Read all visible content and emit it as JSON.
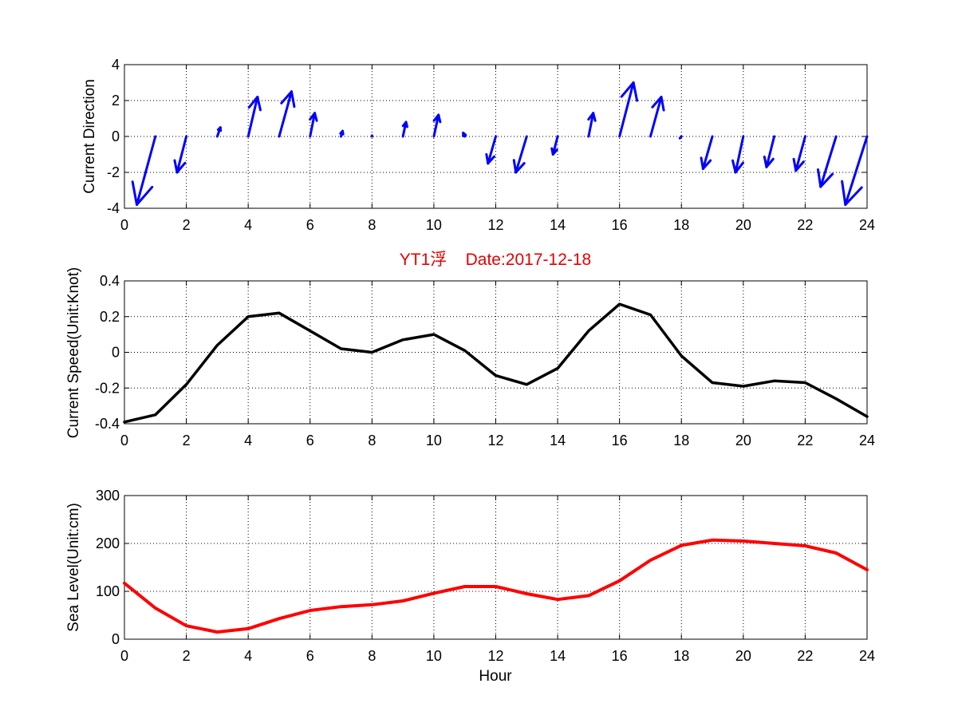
{
  "chart_data": [
    {
      "type": "quiver",
      "title": "",
      "xlabel": "",
      "ylabel": "Current Direction",
      "xlim": [
        0,
        24
      ],
      "ylim": [
        -4,
        4
      ],
      "xticks": [
        0,
        2,
        4,
        6,
        8,
        10,
        12,
        14,
        16,
        18,
        20,
        22,
        24
      ],
      "yticks": [
        -4,
        -2,
        0,
        2,
        4
      ],
      "grid": true,
      "color": "#0000ff",
      "x": [
        0,
        1,
        2,
        3,
        4,
        5,
        6,
        7,
        8,
        9,
        10,
        11,
        12,
        13,
        14,
        15,
        16,
        17,
        18,
        19,
        20,
        21,
        22,
        23,
        24
      ],
      "u": [
        0,
        -0.6,
        -0.3,
        0.1,
        0.3,
        0.4,
        0.15,
        0.05,
        0,
        0.1,
        0.15,
        -0.05,
        -0.25,
        -0.35,
        -0.15,
        0.15,
        0.45,
        0.35,
        -0.05,
        -0.3,
        -0.25,
        -0.25,
        -0.3,
        -0.5,
        -0.7
      ],
      "v": [
        0,
        -3.8,
        -2.0,
        0.5,
        2.2,
        2.5,
        1.3,
        0.3,
        0.05,
        0.8,
        1.2,
        0.2,
        -1.5,
        -2.0,
        -1.0,
        1.3,
        3.0,
        2.2,
        -0.1,
        -1.8,
        -2.0,
        -1.7,
        -1.9,
        -2.8,
        -3.8
      ]
    },
    {
      "type": "line",
      "title": "YT1浮    Date:2017-12-18",
      "xlabel": "",
      "ylabel": "Current Speed(Unit:Knot)",
      "xlim": [
        0,
        24
      ],
      "ylim": [
        -0.4,
        0.4
      ],
      "xticks": [
        0,
        2,
        4,
        6,
        8,
        10,
        12,
        14,
        16,
        18,
        20,
        22,
        24
      ],
      "yticks": [
        -0.4,
        -0.2,
        0,
        0.2,
        0.4
      ],
      "ytick_labels": [
        "-0.4",
        "-0.2",
        "0",
        "0.2",
        "0.4"
      ],
      "grid": true,
      "color": "#000000",
      "title_color": "#e60000",
      "x": [
        0,
        1,
        2,
        3,
        4,
        5,
        6,
        7,
        8,
        9,
        10,
        11,
        12,
        13,
        14,
        15,
        16,
        17,
        18,
        19,
        20,
        21,
        22,
        23,
        24
      ],
      "y": [
        -0.39,
        -0.35,
        -0.18,
        0.04,
        0.2,
        0.22,
        0.12,
        0.02,
        0.0,
        0.07,
        0.1,
        0.01,
        -0.13,
        -0.18,
        -0.09,
        0.12,
        0.27,
        0.21,
        -0.02,
        -0.17,
        -0.19,
        -0.16,
        -0.17,
        -0.26,
        -0.36
      ]
    },
    {
      "type": "line",
      "title": "",
      "xlabel": "Hour",
      "ylabel": "Sea Level(Unit:cm)",
      "xlim": [
        0,
        24
      ],
      "ylim": [
        0,
        300
      ],
      "xticks": [
        0,
        2,
        4,
        6,
        8,
        10,
        12,
        14,
        16,
        18,
        20,
        22,
        24
      ],
      "yticks": [
        0,
        100,
        200,
        300
      ],
      "ytick_labels": [
        "0",
        "100",
        "200",
        "300"
      ],
      "grid": true,
      "color": "#ff0000",
      "x": [
        0,
        1,
        2,
        3,
        4,
        5,
        6,
        7,
        8,
        9,
        10,
        11,
        12,
        13,
        14,
        15,
        16,
        17,
        18,
        19,
        20,
        21,
        22,
        23,
        24
      ],
      "y": [
        117,
        65,
        28,
        15,
        22,
        43,
        60,
        68,
        72,
        80,
        96,
        110,
        110,
        95,
        83,
        91,
        122,
        165,
        196,
        207,
        205,
        200,
        195,
        180,
        145
      ]
    }
  ]
}
